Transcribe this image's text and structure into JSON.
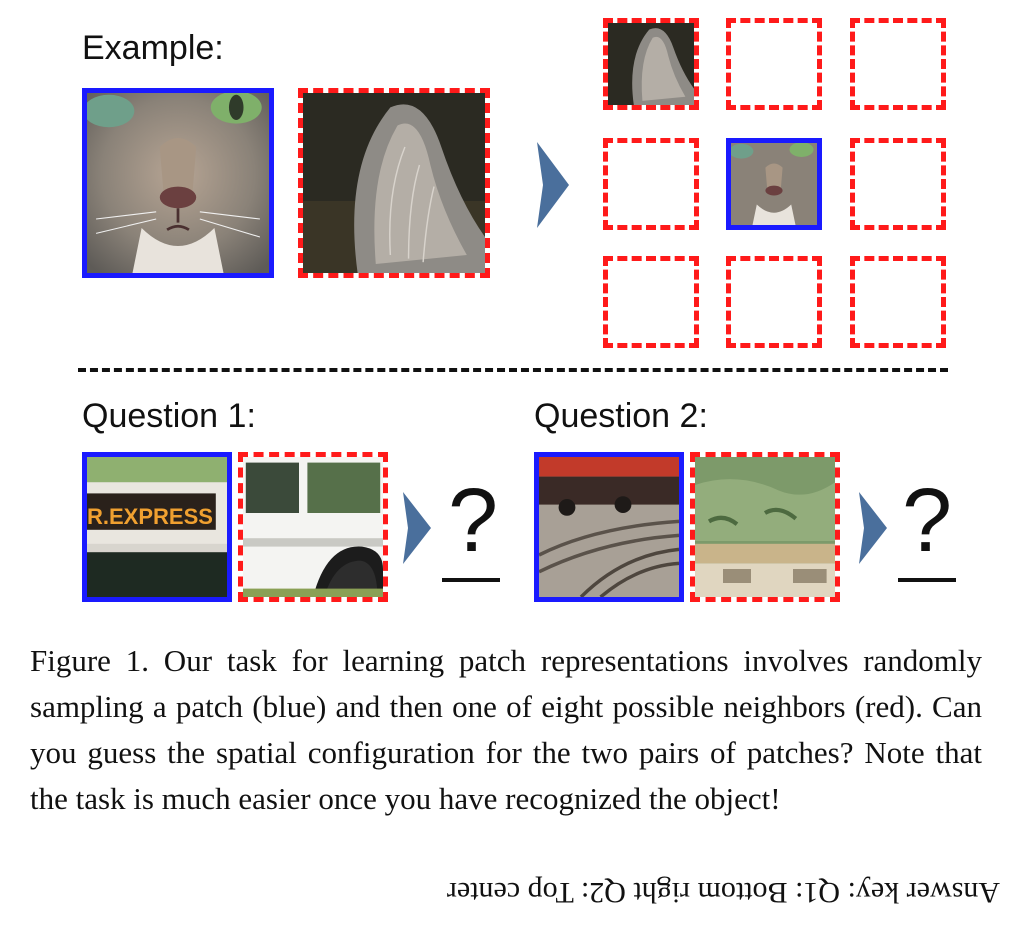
{
  "figure": {
    "example_label": "Example:",
    "question1_label": "Question 1:",
    "question2_label": "Question 2:",
    "question_mark": "?",
    "bus_sign_text": "R.EXPRESS",
    "colors": {
      "center_patch_border": "#1a1aff",
      "neighbor_patch_border": "#ff1a1a",
      "arrow": "#4a6f9c",
      "separator": "#111111"
    },
    "icons": [
      "right-arrow-icon"
    ]
  },
  "caption": {
    "text": "Figure 1. Our task for learning patch representations involves randomly sampling a patch (blue) and then one of eight possible neighbors (red). Can you guess the spatial configuration for the two pairs of patches? Note that the task is much easier once you have recognized the object!",
    "answer_key": "Answer key: Q1: Bottom right Q2: Top center"
  }
}
